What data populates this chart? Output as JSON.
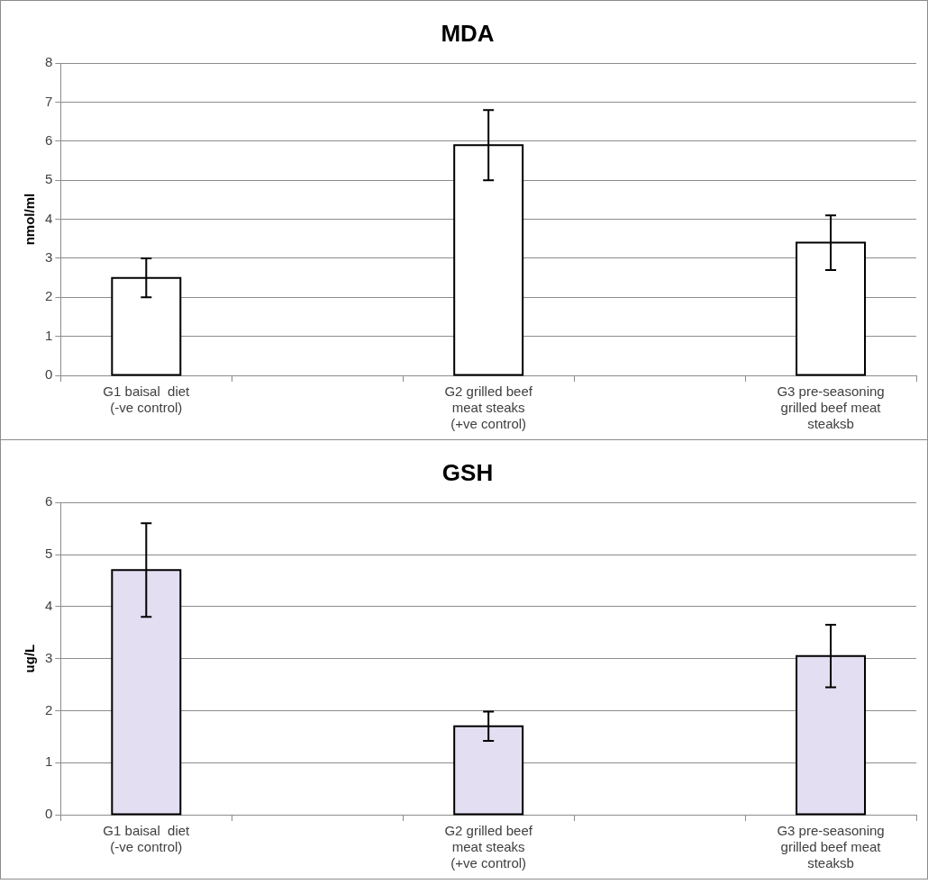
{
  "chart_data": [
    {
      "type": "bar",
      "title": "MDA",
      "ylabel": "nmol/ml",
      "categories": [
        "G1 baisal  diet (-ve control)",
        null,
        "G2 grilled beef meat steaks (+ve control)",
        null,
        "G3 pre-seasoning grilled beef meat steaksb"
      ],
      "series": [
        {
          "color": "#ffffff",
          "values": [
            2.5,
            null,
            5.9,
            null,
            3.4
          ],
          "errors": [
            0.5,
            null,
            0.9,
            null,
            0.7
          ]
        }
      ],
      "ylim": [
        0,
        8
      ],
      "yticks": [
        0,
        1,
        2,
        3,
        4,
        5,
        6,
        7,
        8
      ],
      "grid": "y",
      "legend": false
    },
    {
      "type": "bar",
      "title": "GSH",
      "ylabel": "ug/L",
      "categories": [
        "G1 baisal  diet (-ve control)",
        null,
        "G2 grilled beef meat steaks (+ve control)",
        null,
        "G3 pre-seasoning grilled beef meat steaksb"
      ],
      "series": [
        {
          "color": "#e4def2",
          "values": [
            4.7,
            null,
            1.7,
            null,
            3.05
          ],
          "errors": [
            0.9,
            null,
            0.28,
            null,
            0.6
          ]
        }
      ],
      "ylim": [
        0,
        6
      ],
      "yticks": [
        0,
        1,
        2,
        3,
        4,
        5,
        6
      ],
      "grid": "y",
      "legend": false
    }
  ]
}
